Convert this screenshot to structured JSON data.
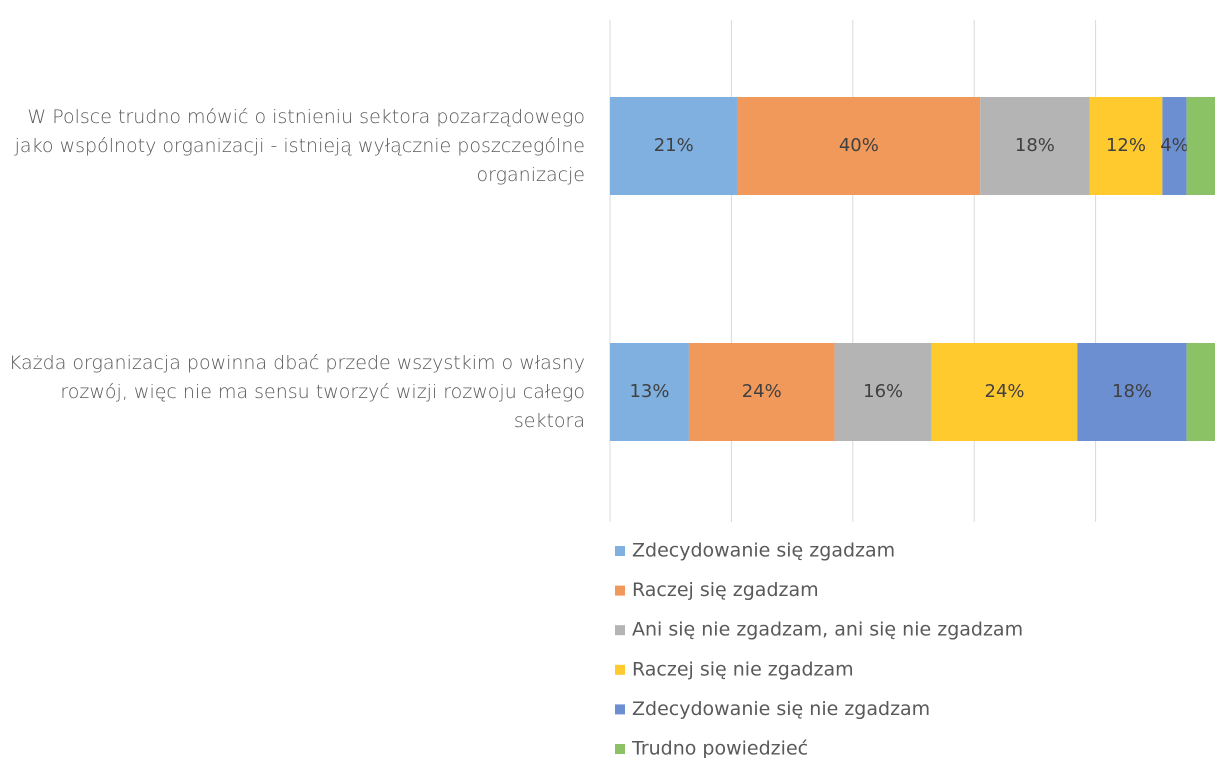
{
  "chart_data": {
    "type": "stacked-bar-horizontal",
    "categories": [
      "W Polsce trudno mówić o istnieniu sektora pozarządowego jako wspólnoty organizacji - istnieją wyłącznie poszczególne organizacje",
      "Każda organizacja powinna dbać przede wszystkim o własny rozwój, więc nie ma sensu tworzyć wizji rozwoju całego sektora"
    ],
    "series": [
      {
        "name": "Zdecydowanie się zgadzam",
        "color": "#7fb0e0",
        "values": [
          21,
          13
        ],
        "value_labels": [
          "21%",
          "13%"
        ]
      },
      {
        "name": "Raczej się zgadzam",
        "color": "#f1985b",
        "values": [
          40,
          24
        ],
        "value_labels": [
          "40%",
          "24%"
        ]
      },
      {
        "name": "Ani się nie zgadzam, ani się nie zgadzam",
        "color": "#b4b4b4",
        "values": [
          18,
          16
        ],
        "value_labels": [
          "18%",
          "16%"
        ]
      },
      {
        "name": "Raczej się nie zgadzam",
        "color": "#ffca2e",
        "values": [
          12,
          24
        ],
        "value_labels": [
          "12%",
          "24%"
        ]
      },
      {
        "name": "Zdecydowanie się nie zgadzam",
        "color": "#6b8fd0",
        "values": [
          4,
          18
        ],
        "value_labels": [
          "4%",
          "18%"
        ]
      },
      {
        "name": "Trudno powiedzieć",
        "color": "#8cc266",
        "values": [
          5,
          5
        ],
        "value_labels": [
          null,
          null
        ]
      }
    ],
    "xlim": [
      0,
      100
    ],
    "xticks": [
      0,
      20,
      40,
      60,
      80,
      100
    ],
    "grid": true,
    "legend": "bottom"
  }
}
